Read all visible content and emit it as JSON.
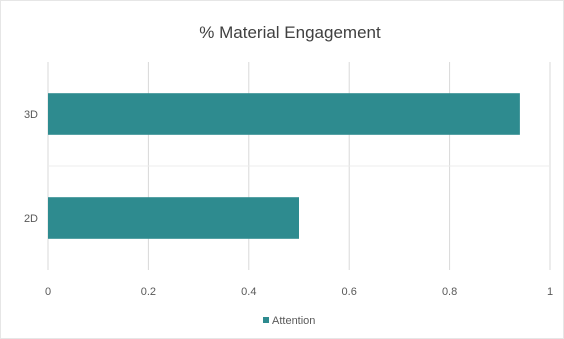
{
  "chart_data": {
    "type": "bar",
    "orientation": "horizontal",
    "title": "% Material Engagement",
    "categories": [
      "2D",
      "3D"
    ],
    "series": [
      {
        "name": "Attention",
        "values": [
          0.5,
          0.94
        ],
        "color": "#2E8B8F"
      }
    ],
    "xlim": [
      0,
      1
    ],
    "xticks": [
      "0",
      "0.2",
      "0.4",
      "0.6",
      "0.8",
      "1"
    ],
    "xlabel": "",
    "ylabel": "",
    "grid": "vertical",
    "legend": "bottom-center"
  }
}
